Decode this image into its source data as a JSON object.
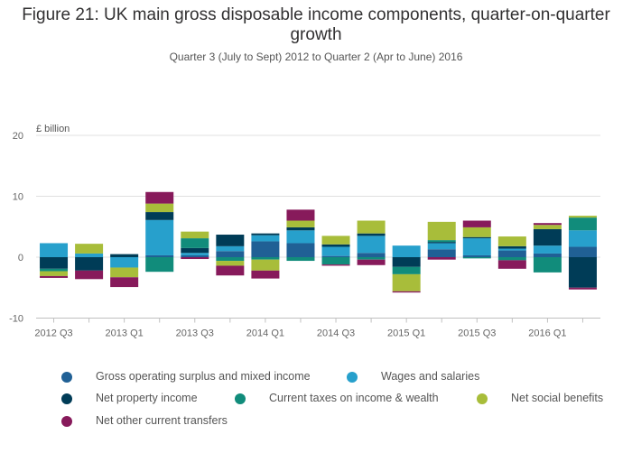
{
  "title": "Figure 21: UK main gross disposable income components, quarter-on-quarter growth",
  "subtitle": "Quarter 3 (July to Sept) 2012 to Quarter 2 (Apr to June) 2016",
  "chart_data": {
    "type": "bar",
    "stacked": true,
    "ylabel": "£ billion",
    "ylim": [
      -10,
      20
    ],
    "yticks": [
      -10,
      0,
      10,
      20
    ],
    "grid": true,
    "legend_position": "bottom",
    "categories": [
      "2012 Q3",
      "2012 Q4",
      "2013 Q1",
      "2013 Q2",
      "2013 Q3",
      "2013 Q4",
      "2014 Q1",
      "2014 Q2",
      "2014 Q3",
      "2014 Q4",
      "2015 Q1",
      "2015 Q2",
      "2015 Q3",
      "2015 Q4",
      "2016 Q1",
      "2016 Q2"
    ],
    "xtick_labels": [
      "2012 Q3",
      "",
      "2013 Q1",
      "",
      "2013 Q3",
      "",
      "2014 Q1",
      "",
      "2014 Q3",
      "",
      "2015 Q1",
      "",
      "2015 Q3",
      "",
      "2016 Q1",
      ""
    ],
    "series": [
      {
        "name": "Gross operating surplus and mixed income",
        "color": "#206095",
        "values": [
          0.0,
          0.0,
          0.0,
          0.3,
          0.3,
          1.0,
          2.6,
          2.3,
          0.2,
          0.7,
          0.0,
          1.3,
          0.3,
          1.1,
          0.6,
          1.7
        ]
      },
      {
        "name": "Wages and salaries",
        "color": "#27a0cc",
        "values": [
          2.3,
          0.6,
          -1.7,
          5.8,
          0.4,
          0.8,
          1.0,
          2.1,
          1.5,
          2.8,
          1.9,
          1.0,
          2.8,
          0.3,
          1.3,
          2.7
        ]
      },
      {
        "name": "Net property income",
        "color": "#003c57",
        "values": [
          -1.9,
          -2.2,
          0.5,
          1.3,
          0.8,
          1.9,
          0.3,
          0.5,
          0.4,
          0.4,
          -1.6,
          0.2,
          0.2,
          0.4,
          2.7,
          -5.0
        ]
      },
      {
        "name": "Current taxes on income & wealth",
        "color": "#118c7b",
        "values": [
          -0.4,
          0.0,
          0.0,
          -2.4,
          1.6,
          -0.6,
          -0.4,
          -0.6,
          -1.2,
          -0.4,
          -1.2,
          0.3,
          -0.2,
          -0.5,
          -2.5,
          2.1
        ]
      },
      {
        "name": "Net social benefits",
        "color": "#a8bd3a",
        "values": [
          -0.8,
          1.6,
          -1.6,
          1.4,
          1.1,
          -0.8,
          -1.8,
          1.1,
          1.4,
          2.1,
          -2.8,
          3.0,
          1.6,
          1.6,
          0.7,
          0.3
        ]
      },
      {
        "name": "Net other current transfers",
        "color": "#871a5b",
        "values": [
          -0.3,
          -1.4,
          -1.6,
          1.9,
          -0.3,
          -1.6,
          -1.3,
          1.8,
          -0.2,
          -0.9,
          -0.2,
          -0.4,
          1.1,
          -1.4,
          0.3,
          -0.3
        ]
      }
    ]
  }
}
